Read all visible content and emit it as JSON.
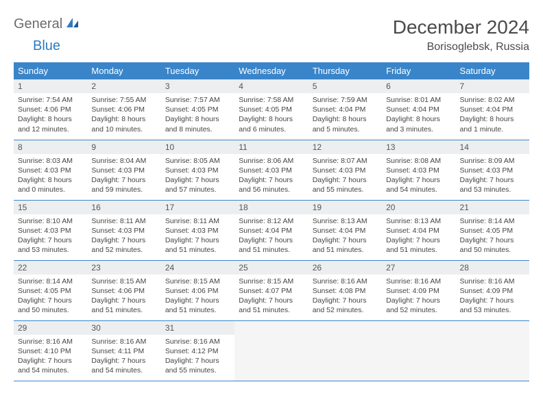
{
  "logo": {
    "general": "General",
    "blue": "Blue"
  },
  "title": {
    "month": "December 2024",
    "location": "Borisoglebsk, Russia"
  },
  "colors": {
    "header_bg": "#3a85c9",
    "header_text": "#ffffff",
    "daynum_bg": "#eceef0",
    "border": "#3a85c9",
    "logo_blue": "#2f7ac0",
    "logo_gray": "#6b6b6b"
  },
  "weekdays": [
    "Sunday",
    "Monday",
    "Tuesday",
    "Wednesday",
    "Thursday",
    "Friday",
    "Saturday"
  ],
  "weeks": [
    [
      {
        "n": "1",
        "sr": "Sunrise: 7:54 AM",
        "ss": "Sunset: 4:06 PM",
        "d1": "Daylight: 8 hours",
        "d2": "and 12 minutes."
      },
      {
        "n": "2",
        "sr": "Sunrise: 7:55 AM",
        "ss": "Sunset: 4:06 PM",
        "d1": "Daylight: 8 hours",
        "d2": "and 10 minutes."
      },
      {
        "n": "3",
        "sr": "Sunrise: 7:57 AM",
        "ss": "Sunset: 4:05 PM",
        "d1": "Daylight: 8 hours",
        "d2": "and 8 minutes."
      },
      {
        "n": "4",
        "sr": "Sunrise: 7:58 AM",
        "ss": "Sunset: 4:05 PM",
        "d1": "Daylight: 8 hours",
        "d2": "and 6 minutes."
      },
      {
        "n": "5",
        "sr": "Sunrise: 7:59 AM",
        "ss": "Sunset: 4:04 PM",
        "d1": "Daylight: 8 hours",
        "d2": "and 5 minutes."
      },
      {
        "n": "6",
        "sr": "Sunrise: 8:01 AM",
        "ss": "Sunset: 4:04 PM",
        "d1": "Daylight: 8 hours",
        "d2": "and 3 minutes."
      },
      {
        "n": "7",
        "sr": "Sunrise: 8:02 AM",
        "ss": "Sunset: 4:04 PM",
        "d1": "Daylight: 8 hours",
        "d2": "and 1 minute."
      }
    ],
    [
      {
        "n": "8",
        "sr": "Sunrise: 8:03 AM",
        "ss": "Sunset: 4:03 PM",
        "d1": "Daylight: 8 hours",
        "d2": "and 0 minutes."
      },
      {
        "n": "9",
        "sr": "Sunrise: 8:04 AM",
        "ss": "Sunset: 4:03 PM",
        "d1": "Daylight: 7 hours",
        "d2": "and 59 minutes."
      },
      {
        "n": "10",
        "sr": "Sunrise: 8:05 AM",
        "ss": "Sunset: 4:03 PM",
        "d1": "Daylight: 7 hours",
        "d2": "and 57 minutes."
      },
      {
        "n": "11",
        "sr": "Sunrise: 8:06 AM",
        "ss": "Sunset: 4:03 PM",
        "d1": "Daylight: 7 hours",
        "d2": "and 56 minutes."
      },
      {
        "n": "12",
        "sr": "Sunrise: 8:07 AM",
        "ss": "Sunset: 4:03 PM",
        "d1": "Daylight: 7 hours",
        "d2": "and 55 minutes."
      },
      {
        "n": "13",
        "sr": "Sunrise: 8:08 AM",
        "ss": "Sunset: 4:03 PM",
        "d1": "Daylight: 7 hours",
        "d2": "and 54 minutes."
      },
      {
        "n": "14",
        "sr": "Sunrise: 8:09 AM",
        "ss": "Sunset: 4:03 PM",
        "d1": "Daylight: 7 hours",
        "d2": "and 53 minutes."
      }
    ],
    [
      {
        "n": "15",
        "sr": "Sunrise: 8:10 AM",
        "ss": "Sunset: 4:03 PM",
        "d1": "Daylight: 7 hours",
        "d2": "and 53 minutes."
      },
      {
        "n": "16",
        "sr": "Sunrise: 8:11 AM",
        "ss": "Sunset: 4:03 PM",
        "d1": "Daylight: 7 hours",
        "d2": "and 52 minutes."
      },
      {
        "n": "17",
        "sr": "Sunrise: 8:11 AM",
        "ss": "Sunset: 4:03 PM",
        "d1": "Daylight: 7 hours",
        "d2": "and 51 minutes."
      },
      {
        "n": "18",
        "sr": "Sunrise: 8:12 AM",
        "ss": "Sunset: 4:04 PM",
        "d1": "Daylight: 7 hours",
        "d2": "and 51 minutes."
      },
      {
        "n": "19",
        "sr": "Sunrise: 8:13 AM",
        "ss": "Sunset: 4:04 PM",
        "d1": "Daylight: 7 hours",
        "d2": "and 51 minutes."
      },
      {
        "n": "20",
        "sr": "Sunrise: 8:13 AM",
        "ss": "Sunset: 4:04 PM",
        "d1": "Daylight: 7 hours",
        "d2": "and 51 minutes."
      },
      {
        "n": "21",
        "sr": "Sunrise: 8:14 AM",
        "ss": "Sunset: 4:05 PM",
        "d1": "Daylight: 7 hours",
        "d2": "and 50 minutes."
      }
    ],
    [
      {
        "n": "22",
        "sr": "Sunrise: 8:14 AM",
        "ss": "Sunset: 4:05 PM",
        "d1": "Daylight: 7 hours",
        "d2": "and 50 minutes."
      },
      {
        "n": "23",
        "sr": "Sunrise: 8:15 AM",
        "ss": "Sunset: 4:06 PM",
        "d1": "Daylight: 7 hours",
        "d2": "and 51 minutes."
      },
      {
        "n": "24",
        "sr": "Sunrise: 8:15 AM",
        "ss": "Sunset: 4:06 PM",
        "d1": "Daylight: 7 hours",
        "d2": "and 51 minutes."
      },
      {
        "n": "25",
        "sr": "Sunrise: 8:15 AM",
        "ss": "Sunset: 4:07 PM",
        "d1": "Daylight: 7 hours",
        "d2": "and 51 minutes."
      },
      {
        "n": "26",
        "sr": "Sunrise: 8:16 AM",
        "ss": "Sunset: 4:08 PM",
        "d1": "Daylight: 7 hours",
        "d2": "and 52 minutes."
      },
      {
        "n": "27",
        "sr": "Sunrise: 8:16 AM",
        "ss": "Sunset: 4:09 PM",
        "d1": "Daylight: 7 hours",
        "d2": "and 52 minutes."
      },
      {
        "n": "28",
        "sr": "Sunrise: 8:16 AM",
        "ss": "Sunset: 4:09 PM",
        "d1": "Daylight: 7 hours",
        "d2": "and 53 minutes."
      }
    ],
    [
      {
        "n": "29",
        "sr": "Sunrise: 8:16 AM",
        "ss": "Sunset: 4:10 PM",
        "d1": "Daylight: 7 hours",
        "d2": "and 54 minutes."
      },
      {
        "n": "30",
        "sr": "Sunrise: 8:16 AM",
        "ss": "Sunset: 4:11 PM",
        "d1": "Daylight: 7 hours",
        "d2": "and 54 minutes."
      },
      {
        "n": "31",
        "sr": "Sunrise: 8:16 AM",
        "ss": "Sunset: 4:12 PM",
        "d1": "Daylight: 7 hours",
        "d2": "and 55 minutes."
      },
      null,
      null,
      null,
      null
    ]
  ]
}
